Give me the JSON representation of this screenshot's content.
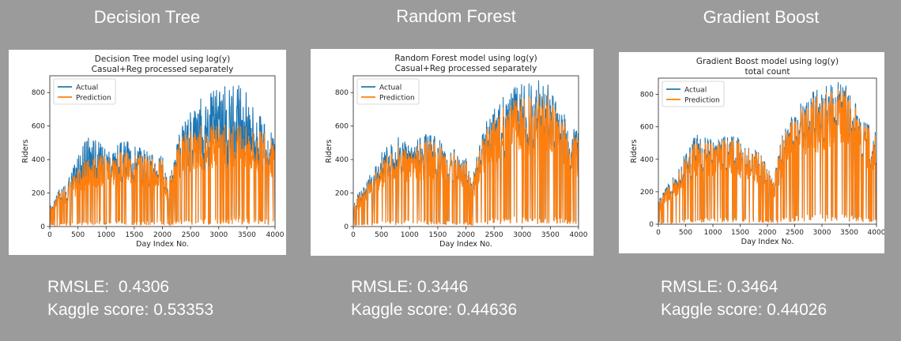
{
  "panels": [
    {
      "heading": "Decision Tree",
      "rmsle_label": "RMSLE:  0.4306",
      "kaggle_label": "Kaggle score: 0.53353"
    },
    {
      "heading": "Random Forest",
      "rmsle_label": "RMSLE: 0.3446",
      "kaggle_label": "Kaggle score: 0.44636"
    },
    {
      "heading": "Gradient Boost",
      "rmsle_label": "RMSLE: 0.3464",
      "kaggle_label": "Kaggle score: 0.44026"
    }
  ],
  "chart_data": [
    {
      "type": "line",
      "title": "Decision Tree model using log(y)",
      "subtitle": "Casual+Reg processed separately",
      "xlabel": "Day Index No.",
      "ylabel": "Riders",
      "xlim": [
        0,
        4000
      ],
      "ylim": [
        0,
        900
      ],
      "xticks": [
        0,
        500,
        1000,
        1500,
        2000,
        2500,
        3000,
        3500,
        4000
      ],
      "yticks": [
        0,
        200,
        400,
        600,
        800
      ],
      "grid": false,
      "legend": "top-left",
      "series": [
        {
          "name": "Actual",
          "color": "#1f77b4",
          "x": [
            0,
            300,
            700,
            1000,
            1400,
            1700,
            2000,
            2100,
            2300,
            2600,
            2900,
            3300,
            3500,
            3800,
            4000
          ],
          "y": [
            150,
            280,
            560,
            480,
            520,
            460,
            420,
            250,
            560,
            760,
            820,
            860,
            820,
            620,
            560
          ]
        },
        {
          "name": "Prediction",
          "color": "#ff7f0e",
          "x": [
            0,
            300,
            700,
            1000,
            1400,
            1700,
            2000,
            2100,
            2300,
            2600,
            2900,
            3300,
            3500,
            3800,
            4000
          ],
          "y": [
            140,
            260,
            420,
            440,
            450,
            430,
            400,
            240,
            520,
            610,
            610,
            610,
            610,
            560,
            520
          ]
        }
      ]
    },
    {
      "type": "line",
      "title": "Random Forest model using log(y)",
      "subtitle": "Casual+Reg processed separately",
      "xlabel": "Day Index No.",
      "ylabel": "Riders",
      "xlim": [
        0,
        4000
      ],
      "ylim": [
        0,
        900
      ],
      "xticks": [
        0,
        500,
        1000,
        1500,
        2000,
        2500,
        3000,
        3500,
        4000
      ],
      "yticks": [
        0,
        200,
        400,
        600,
        800
      ],
      "grid": false,
      "legend": "top-left",
      "series": [
        {
          "name": "Actual",
          "color": "#1f77b4",
          "x": [
            0,
            300,
            700,
            1000,
            1400,
            1700,
            2000,
            2100,
            2300,
            2600,
            2900,
            3300,
            3500,
            3800,
            4000
          ],
          "y": [
            150,
            320,
            560,
            520,
            560,
            480,
            420,
            260,
            600,
            760,
            840,
            880,
            840,
            640,
            560
          ]
        },
        {
          "name": "Prediction",
          "color": "#ff7f0e",
          "x": [
            0,
            300,
            700,
            1000,
            1400,
            1700,
            2000,
            2100,
            2300,
            2600,
            2900,
            3300,
            3500,
            3800,
            4000
          ],
          "y": [
            140,
            290,
            500,
            480,
            520,
            460,
            400,
            250,
            560,
            700,
            760,
            800,
            780,
            600,
            520
          ]
        }
      ]
    },
    {
      "type": "line",
      "title": "Gradient Boost model using log(y)",
      "subtitle": "total count",
      "xlabel": "Day Index No.",
      "ylabel": "Riders",
      "xlim": [
        0,
        4000
      ],
      "ylim": [
        0,
        900
      ],
      "xticks": [
        0,
        500,
        1000,
        1500,
        2000,
        2500,
        3000,
        3500,
        4000
      ],
      "yticks": [
        0,
        200,
        400,
        600,
        800
      ],
      "grid": false,
      "legend": "top-left",
      "series": [
        {
          "name": "Actual",
          "color": "#1f77b4",
          "x": [
            0,
            300,
            700,
            1000,
            1400,
            1700,
            2000,
            2100,
            2300,
            2600,
            2900,
            3300,
            3500,
            3800,
            4000
          ],
          "y": [
            150,
            320,
            560,
            520,
            560,
            480,
            420,
            260,
            600,
            760,
            840,
            880,
            840,
            640,
            560
          ]
        },
        {
          "name": "Prediction",
          "color": "#ff7f0e",
          "x": [
            0,
            300,
            700,
            1000,
            1400,
            1700,
            2000,
            2100,
            2300,
            2600,
            2900,
            3300,
            3500,
            3800,
            4000
          ],
          "y": [
            140,
            300,
            520,
            500,
            540,
            470,
            410,
            255,
            580,
            730,
            800,
            840,
            810,
            620,
            540
          ]
        }
      ]
    }
  ]
}
